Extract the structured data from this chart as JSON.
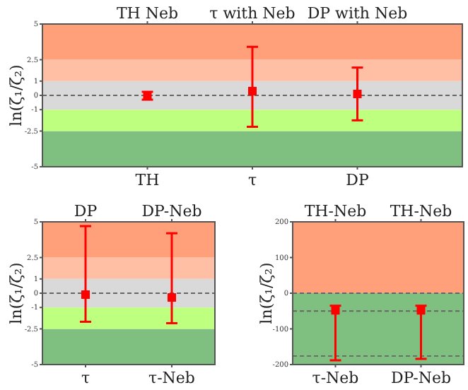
{
  "chart_data": [
    {
      "type": "scatter",
      "ylabel": "ln(ζ₁/ζ₂)",
      "categories": [
        "TH",
        "τ",
        "DP"
      ],
      "annotations": [
        "TH Neb",
        "τ with Neb",
        "DP with Neb"
      ],
      "marker": "square",
      "series": [
        {
          "color": "#ff0000",
          "values": [
            0,
            0.3,
            0.1
          ],
          "errors": [
            [
              -0.3,
              0.25
            ],
            [
              -2.2,
              3.4
            ],
            [
              -1.75,
              1.95
            ]
          ]
        }
      ],
      "ylim": [
        -5,
        5
      ],
      "yticks": [
        -5,
        -2.5,
        -1,
        0,
        1,
        2.5,
        5
      ],
      "bands": [
        {
          "axis": "y",
          "from": -5,
          "to": -2.5,
          "color": "#7fbf7f"
        },
        {
          "axis": "y",
          "from": -2.5,
          "to": -1,
          "color": "#bfff7f"
        },
        {
          "axis": "y",
          "from": -1,
          "to": 1,
          "color": "#d9d9d9"
        },
        {
          "axis": "y",
          "from": 1,
          "to": 2.5,
          "color": "#ffbfa5"
        },
        {
          "axis": "y",
          "from": 2.5,
          "to": 5,
          "color": "#ffa07a"
        }
      ],
      "ref_lines": [
        {
          "axis": "y",
          "value": 0,
          "color": "#666666",
          "line_style": "dashed"
        }
      ],
      "grid": false
    },
    {
      "type": "scatter",
      "ylabel": "ln(ζ₁/ζ₂)",
      "categories": [
        "τ",
        "τ-Neb"
      ],
      "annotations": [
        "DP",
        "DP-Neb"
      ],
      "marker": "square",
      "series": [
        {
          "color": "#ff0000",
          "values": [
            -0.1,
            -0.3
          ],
          "errors": [
            [
              -2.0,
              4.7
            ],
            [
              -2.1,
              4.2
            ]
          ]
        }
      ],
      "ylim": [
        -5,
        5
      ],
      "yticks": [
        -5,
        -2.5,
        -1,
        0,
        1,
        2.5,
        5
      ],
      "bands": [
        {
          "axis": "y",
          "from": -5,
          "to": -2.5,
          "color": "#7fbf7f"
        },
        {
          "axis": "y",
          "from": -2.5,
          "to": -1,
          "color": "#bfff7f"
        },
        {
          "axis": "y",
          "from": -1,
          "to": 1,
          "color": "#d9d9d9"
        },
        {
          "axis": "y",
          "from": 1,
          "to": 2.5,
          "color": "#ffbfa5"
        },
        {
          "axis": "y",
          "from": 2.5,
          "to": 5,
          "color": "#ffa07a"
        }
      ],
      "ref_lines": [
        {
          "axis": "y",
          "value": 0,
          "color": "#666666",
          "line_style": "dashed"
        }
      ],
      "grid": false
    },
    {
      "type": "scatter",
      "ylabel": "ln(ζ₁/ζ₂)",
      "categories": [
        "τ-Neb",
        "DP-Neb"
      ],
      "annotations": [
        "TH-Neb",
        "TH-Neb"
      ],
      "marker": "square",
      "series": [
        {
          "color": "#ff0000",
          "values": [
            -48,
            -48
          ],
          "errors": [
            [
              -188,
              -35
            ],
            [
              -184,
              -35
            ]
          ]
        }
      ],
      "ylim": [
        -200,
        200
      ],
      "yticks": [
        -200,
        -100,
        0,
        100,
        200
      ],
      "bands": [
        {
          "axis": "y",
          "from": -200,
          "to": 0,
          "color": "#7fbf7f"
        },
        {
          "axis": "y",
          "from": 0,
          "to": 200,
          "color": "#ffa07a"
        }
      ],
      "ref_lines": [
        {
          "axis": "y",
          "value": 0,
          "color": "#666666",
          "line_style": "dashed"
        },
        {
          "axis": "y",
          "value": -50,
          "color": "#666666",
          "line_style": "dashed"
        },
        {
          "axis": "y",
          "value": -176,
          "color": "#666666",
          "line_style": "dashed"
        }
      ],
      "grid": false
    }
  ]
}
